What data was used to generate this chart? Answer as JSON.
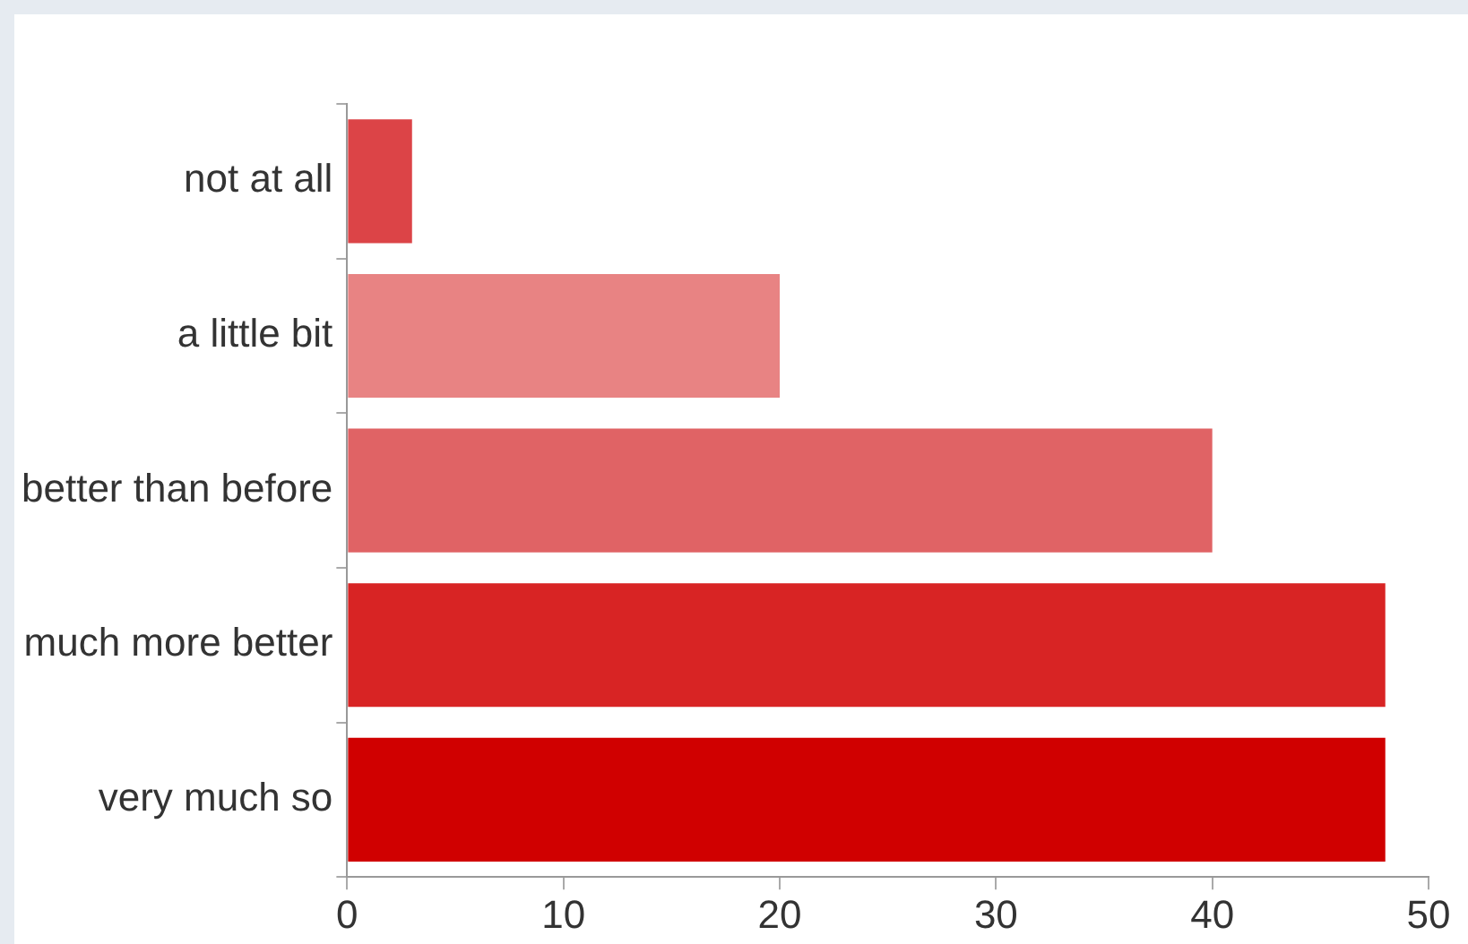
{
  "chart_data": {
    "type": "bar",
    "orientation": "horizontal",
    "categories": [
      "not at all",
      "a little bit",
      "better than before",
      "much more better",
      "very much so"
    ],
    "values": [
      3,
      20,
      40,
      48,
      48
    ],
    "colors": [
      "#dc4447",
      "#e88383",
      "#e06365",
      "#d82424",
      "#d00000"
    ],
    "xlim": [
      0,
      50
    ],
    "xticks": [
      0,
      10,
      20,
      30,
      40,
      50
    ],
    "grid": false,
    "legend": false
  }
}
